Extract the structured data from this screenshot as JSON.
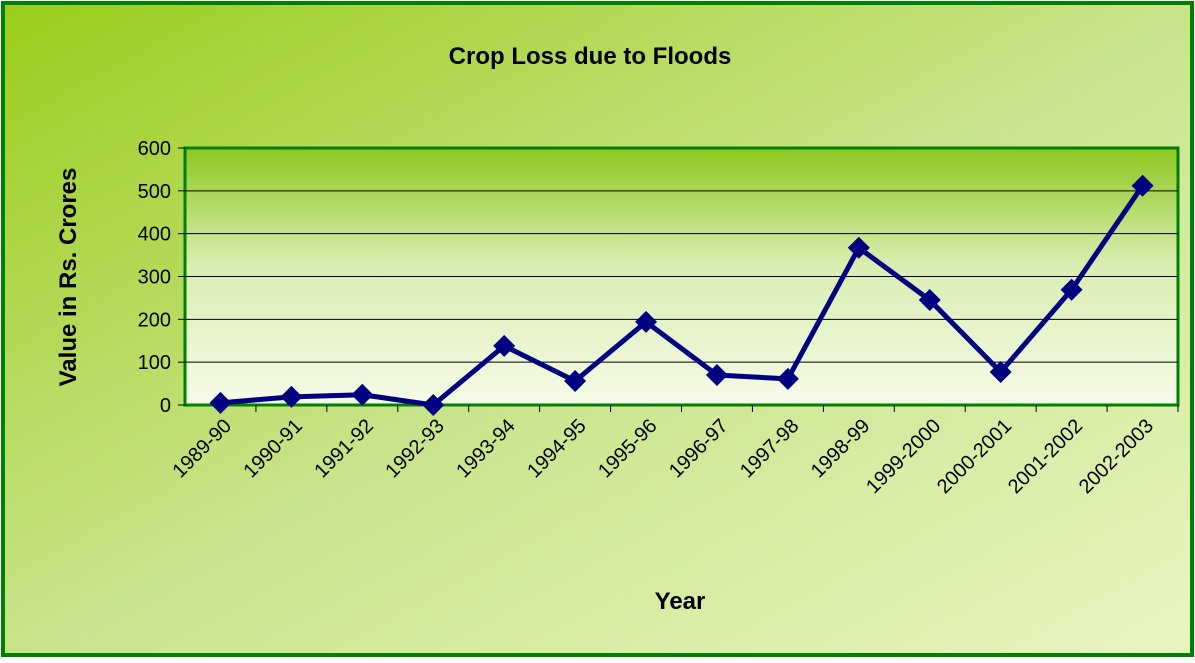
{
  "chart_data": {
    "type": "line",
    "title": "Crop Loss due to Floods",
    "x_label": "Year",
    "y_label": "Value in Rs. Crores",
    "categories": [
      "1989-90",
      "1990-91",
      "1991-92",
      "1992-93",
      "1993-94",
      "1994-95",
      "1995-96",
      "1996-97",
      "1997-98",
      "1998-99",
      "1999-2000",
      "2000-2001",
      "2001-2002",
      "2002-2003"
    ],
    "series": [
      {
        "name": "Crop Loss",
        "color": "#000080",
        "values": [
          5,
          19,
          24,
          0,
          138,
          56,
          194,
          70,
          61,
          367,
          245,
          77,
          269,
          512
        ]
      }
    ],
    "ylim": [
      0,
      600
    ],
    "yticks": [
      0,
      100,
      200,
      300,
      400,
      500,
      600
    ],
    "grid": true
  }
}
